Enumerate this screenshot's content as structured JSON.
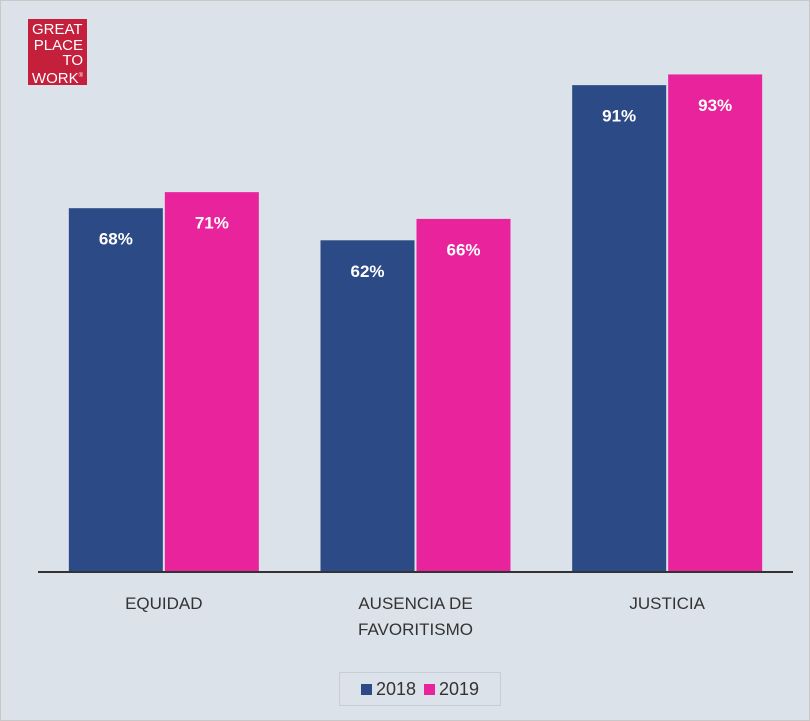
{
  "logo": {
    "lines": [
      "GREAT",
      "PLACE",
      "TO",
      "WORK"
    ],
    "mark": "®"
  },
  "chart_data": {
    "type": "bar",
    "categories": [
      "EQUIDAD",
      "AUSENCIA DE FAVORITISMO",
      "JUSTICIA"
    ],
    "series": [
      {
        "name": "2018",
        "color": "#2b4a86",
        "values": [
          68,
          62,
          91
        ],
        "value_labels": [
          "68%",
          "62%",
          "91%"
        ]
      },
      {
        "name": "2019",
        "color": "#e8239b",
        "values": [
          71,
          66,
          93
        ],
        "value_labels": [
          "71%",
          "66%",
          "93%"
        ]
      }
    ]
  }
}
